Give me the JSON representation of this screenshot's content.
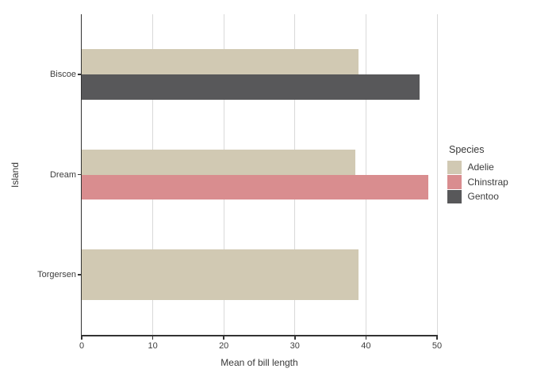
{
  "chart_data": {
    "type": "bar",
    "orientation": "horizontal",
    "xlabel": "Mean of bill length",
    "ylabel": "Island",
    "categories": [
      "Biscoe",
      "Dream",
      "Torgersen"
    ],
    "series": [
      {
        "name": "Adelie",
        "color": "#d1c9b3",
        "values": [
          39,
          38.5,
          39
        ]
      },
      {
        "name": "Chinstrap",
        "color": "#d98d8f",
        "values": [
          null,
          48.8,
          null
        ]
      },
      {
        "name": "Gentoo",
        "color": "#58585a",
        "values": [
          47.5,
          null,
          null
        ]
      }
    ],
    "xlim": [
      0,
      50
    ],
    "xticks": [
      0,
      10,
      20,
      30,
      40,
      50
    ],
    "bar_group_fraction": 0.5,
    "legend": {
      "title": "Species",
      "position": "right"
    },
    "grid": "vertical-only",
    "colors": {
      "background": "#ffffff",
      "gridline": "#d9d9d9",
      "axis_line": "#333333",
      "text": "#3d3d3d"
    }
  }
}
